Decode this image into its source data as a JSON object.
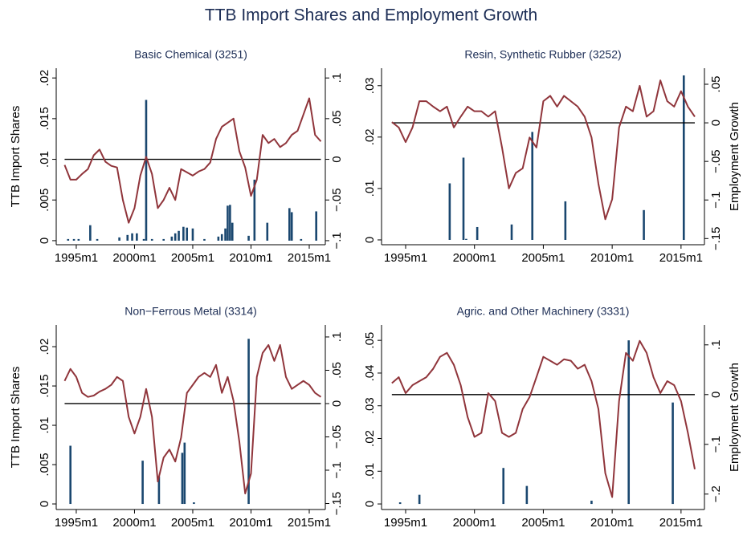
{
  "title": "TTB Import Shares and Employment Growth",
  "chart_data": [
    {
      "type": "bar-line",
      "subtitle": "Basic Chemical (3251)",
      "ylabel": "TTB Import Shares",
      "xlim": [
        1993.28,
        2016.38
      ],
      "ylim": [
        -0.0005,
        0.0212
      ],
      "y2lim": [
        -0.105,
        0.112
      ],
      "xticks": [
        {
          "value": 1995,
          "label": "1995m1"
        },
        {
          "value": 2000,
          "label": "2000m1"
        },
        {
          "value": 2005,
          "label": "2005m1"
        },
        {
          "value": 2010,
          "label": "2010m1"
        },
        {
          "value": 2015,
          "label": "2015m1"
        }
      ],
      "yticks": [
        0,
        {
          "value": 0.005,
          "label": ".005"
        },
        {
          "value": 0.01,
          "label": ".01"
        },
        {
          "value": 0.015,
          "label": ".015"
        },
        {
          "value": 0.02,
          "label": ".02"
        }
      ],
      "y2ticks": [
        {
          "value": -0.1,
          "label": "−.1"
        },
        {
          "value": -0.05,
          "label": "−.05"
        },
        0,
        {
          "value": 0.05,
          "label": ".05"
        },
        {
          "value": 0.1,
          "label": ".1"
        }
      ],
      "y2_refline": 0,
      "series": [
        {
          "type": "bar",
          "color": "#1a476f",
          "x": [
            1994.3,
            1994.8,
            1995.2,
            1996.2,
            1996.8,
            1998.7,
            1999.4,
            1999.8,
            2000.2,
            2000.8,
            2001,
            2001.5,
            2002.5,
            2003.2,
            2003.5,
            2003.8,
            2004.2,
            2004.5,
            2005,
            2006,
            2007.2,
            2007.5,
            2007.8,
            2008,
            2008.2,
            2008.4,
            2009.8,
            2010.3,
            2011.4,
            2013.3,
            2013.5,
            2014.3,
            2015.6
          ],
          "values": [
            0.0002,
            0.0002,
            0.0002,
            0.0019,
            0.0002,
            0.0004,
            0.0007,
            0.0009,
            0.0009,
            0.0002,
            0.0173,
            0.0002,
            0.0002,
            0.0005,
            0.0009,
            0.0012,
            0.0017,
            0.0016,
            0.0015,
            0.0002,
            0.0005,
            0.0008,
            0.0015,
            0.0043,
            0.0044,
            0.0022,
            0.0006,
            0.0075,
            0.0022,
            0.004,
            0.0035,
            0.0002,
            0.0036
          ]
        },
        {
          "type": "line",
          "axis": "y2",
          "color": "#90353b",
          "x": [
            1994,
            1994.5,
            1995,
            1995.5,
            1996,
            1996.5,
            1997,
            1997.5,
            1998,
            1998.5,
            1999,
            1999.5,
            2000,
            2000.5,
            2001,
            2001.5,
            2002,
            2002.5,
            2003,
            2003.5,
            2004,
            2004.5,
            2005,
            2005.5,
            2006,
            2006.5,
            2007,
            2007.5,
            2008,
            2008.5,
            2009,
            2009.5,
            2010,
            2010.5,
            2011,
            2011.5,
            2012,
            2012.5,
            2013,
            2013.5,
            2014,
            2014.5,
            2015,
            2015.5,
            2016
          ],
          "values": [
            -0.007,
            -0.025,
            -0.025,
            -0.018,
            -0.012,
            0.005,
            0.012,
            -0.003,
            -0.008,
            -0.01,
            -0.05,
            -0.078,
            -0.06,
            -0.02,
            0.003,
            -0.018,
            -0.06,
            -0.05,
            -0.035,
            -0.05,
            -0.012,
            -0.016,
            -0.02,
            -0.015,
            -0.012,
            -0.004,
            0.025,
            0.04,
            0.045,
            0.05,
            0.01,
            -0.01,
            -0.045,
            -0.025,
            0.03,
            0.02,
            0.025,
            0.015,
            0.02,
            0.03,
            0.035,
            0.055,
            0.075,
            0.03,
            0.022
          ]
        }
      ]
    },
    {
      "type": "bar-line",
      "subtitle": "Resin, Synthetic Rubber (3252)",
      "y2label": "Employment Growth",
      "xlim": [
        1993.25,
        2016.7
      ],
      "ylim": [
        -0.00094,
        0.0334
      ],
      "y2lim": [
        -0.158,
        0.0708
      ],
      "xticks": [
        {
          "value": 1995,
          "label": "1995m1"
        },
        {
          "value": 2000,
          "label": "2000m1"
        },
        {
          "value": 2005,
          "label": "2005m1"
        },
        {
          "value": 2010,
          "label": "2010m1"
        },
        {
          "value": 2015,
          "label": "2015m1"
        }
      ],
      "yticks": [
        0,
        {
          "value": 0.01,
          "label": ".01"
        },
        {
          "value": 0.02,
          "label": ".02"
        },
        {
          "value": 0.03,
          "label": ".03"
        }
      ],
      "y2ticks": [
        {
          "value": -0.15,
          "label": "−.15"
        },
        {
          "value": -0.1,
          "label": "−.1"
        },
        {
          "value": -0.05,
          "label": "−.05"
        },
        0,
        {
          "value": 0.05,
          "label": ".05"
        }
      ],
      "y2_refline": 0,
      "series": [
        {
          "type": "bar",
          "color": "#1a476f",
          "x": [
            1998.2,
            1999.2,
            1999.4,
            2000.2,
            2002.7,
            2004.2,
            2006.6,
            2012.3,
            2015.2
          ],
          "values": [
            0.011,
            0.016,
            0.0002,
            0.0025,
            0.003,
            0.021,
            0.0075,
            0.0058,
            0.032
          ]
        },
        {
          "type": "line",
          "axis": "y2",
          "color": "#90353b",
          "x": [
            1994,
            1994.5,
            1995,
            1995.5,
            1996,
            1996.5,
            1997,
            1997.5,
            1998,
            1998.5,
            1999,
            1999.5,
            2000,
            2000.5,
            2001,
            2001.5,
            2002,
            2002.5,
            2003,
            2003.5,
            2004,
            2004.5,
            2005,
            2005.5,
            2006,
            2006.5,
            2007,
            2007.5,
            2008,
            2008.5,
            2009,
            2009.5,
            2010,
            2010.5,
            2011,
            2011.5,
            2012,
            2012.5,
            2013,
            2013.5,
            2014,
            2014.5,
            2015,
            2015.5,
            2016
          ],
          "values": [
            0.001,
            -0.006,
            -0.025,
            -0.006,
            0.028,
            0.028,
            0.021,
            0.015,
            0.021,
            -0.006,
            0.008,
            0.021,
            0.015,
            0.015,
            0.008,
            0.015,
            -0.032,
            -0.085,
            -0.065,
            -0.059,
            -0.019,
            -0.032,
            0.028,
            0.035,
            0.021,
            0.035,
            0.028,
            0.021,
            0.008,
            -0.019,
            -0.079,
            -0.125,
            -0.099,
            -0.006,
            0.021,
            0.015,
            0.048,
            0.008,
            0.015,
            0.055,
            0.028,
            0.021,
            0.041,
            0.021,
            0.008
          ]
        }
      ]
    },
    {
      "type": "bar-line",
      "subtitle": "Non−Ferrous Metal (3314)",
      "ylabel": "TTB Import Shares",
      "xlim": [
        1993.28,
        2016.38
      ],
      "ylim": [
        -0.00071,
        0.02276
      ],
      "y2lim": [
        -0.159,
        0.118
      ],
      "xticks": [
        {
          "value": 1995,
          "label": "1995m1"
        },
        {
          "value": 2000,
          "label": "2000m1"
        },
        {
          "value": 2005,
          "label": "2005m1"
        },
        {
          "value": 2010,
          "label": "2010m1"
        },
        {
          "value": 2015,
          "label": "2015m1"
        }
      ],
      "yticks": [
        0,
        {
          "value": 0.005,
          "label": ".005"
        },
        {
          "value": 0.01,
          "label": ".01"
        },
        {
          "value": 0.015,
          "label": ".015"
        },
        {
          "value": 0.02,
          "label": ".02"
        }
      ],
      "y2ticks": [
        {
          "value": -0.15,
          "label": "−.15"
        },
        {
          "value": -0.1,
          "label": "−.1"
        },
        {
          "value": -0.05,
          "label": "−.05"
        },
        0,
        {
          "value": 0.05,
          "label": ".05"
        },
        {
          "value": 0.1,
          "label": ".1"
        }
      ],
      "y2_refline": 0,
      "series": [
        {
          "type": "bar",
          "color": "#1a476f",
          "x": [
            1994.5,
            2000.7,
            2002.1,
            2004.1,
            2004.3,
            2005.1,
            2009.8
          ],
          "values": [
            0.0074,
            0.0055,
            0.0035,
            0.0065,
            0.0078,
            0.0002,
            0.021
          ]
        },
        {
          "type": "line",
          "axis": "y2",
          "color": "#90353b",
          "x": [
            1994,
            1994.5,
            1995,
            1995.5,
            1996,
            1996.5,
            1997,
            1997.5,
            1998,
            1998.5,
            1999,
            1999.5,
            2000,
            2000.5,
            2001,
            2001.5,
            2002,
            2002.5,
            2003,
            2003.5,
            2004,
            2004.5,
            2005,
            2005.5,
            2006,
            2006.5,
            2007,
            2007.5,
            2008,
            2008.5,
            2009,
            2009.5,
            2010,
            2010.5,
            2011,
            2011.5,
            2012,
            2012.5,
            2013,
            2013.5,
            2014,
            2014.5,
            2015,
            2015.5,
            2016
          ],
          "values": [
            0.034,
            0.052,
            0.04,
            0.016,
            0.01,
            0.012,
            0.018,
            0.022,
            0.028,
            0.04,
            0.034,
            -0.02,
            -0.045,
            -0.02,
            0.022,
            -0.02,
            -0.117,
            -0.081,
            -0.069,
            -0.087,
            -0.051,
            0.016,
            0.028,
            0.04,
            0.046,
            0.04,
            0.058,
            0.016,
            0.04,
            0.004,
            -0.057,
            -0.135,
            -0.105,
            0.04,
            0.076,
            0.088,
            0.064,
            0.088,
            0.04,
            0.022,
            0.028,
            0.034,
            0.028,
            0.016,
            0.01
          ]
        }
      ]
    },
    {
      "type": "bar-line",
      "subtitle": "Agric. and Other Machinery  (3331)",
      "y2label": "Employment Growth",
      "xlim": [
        1993.25,
        2016.7
      ],
      "ylim": [
        -0.0017,
        0.0547
      ],
      "y2lim": [
        -0.231,
        0.14
      ],
      "xticks": [
        {
          "value": 1995,
          "label": "1995m1"
        },
        {
          "value": 2000,
          "label": "2000m1"
        },
        {
          "value": 2005,
          "label": "2005m1"
        },
        {
          "value": 2010,
          "label": "2010m1"
        },
        {
          "value": 2015,
          "label": "2015m1"
        }
      ],
      "yticks": [
        0,
        {
          "value": 0.01,
          "label": ".01"
        },
        {
          "value": 0.02,
          "label": ".02"
        },
        {
          "value": 0.03,
          "label": ".03"
        },
        {
          "value": 0.04,
          "label": ".04"
        },
        {
          "value": 0.05,
          "label": ".05"
        }
      ],
      "y2ticks": [
        {
          "value": -0.2,
          "label": "−.2"
        },
        {
          "value": -0.1,
          "label": "−.1"
        },
        0,
        {
          "value": 0.1,
          "label": ".1"
        }
      ],
      "y2_refline": 0,
      "series": [
        {
          "type": "bar",
          "color": "#1a476f",
          "x": [
            1994.6,
            1996,
            2002.1,
            2003.8,
            2008.5,
            2011.2,
            2014.4
          ],
          "values": [
            0.0005,
            0.0028,
            0.011,
            0.0055,
            0.001,
            0.05,
            0.031
          ]
        },
        {
          "type": "line",
          "axis": "y2",
          "color": "#90353b",
          "x": [
            1994,
            1994.5,
            1995,
            1995.5,
            1996,
            1996.5,
            1997,
            1997.5,
            1998,
            1998.5,
            1999,
            1999.5,
            2000,
            2000.5,
            2001,
            2001.5,
            2002,
            2002.5,
            2003,
            2003.5,
            2004,
            2004.5,
            2005,
            2005.5,
            2006,
            2006.5,
            2007,
            2007.5,
            2008,
            2008.5,
            2009,
            2009.5,
            2010,
            2010.5,
            2011,
            2011.5,
            2012,
            2012.5,
            2013,
            2013.5,
            2014,
            2014.5,
            2015,
            2015.5,
            2016
          ],
          "values": [
            0.023,
            0.035,
            0.003,
            0.019,
            0.027,
            0.035,
            0.052,
            0.076,
            0.084,
            0.06,
            0.019,
            -0.045,
            -0.085,
            -0.077,
            0.003,
            -0.013,
            -0.077,
            -0.085,
            -0.077,
            -0.029,
            -0.005,
            0.035,
            0.076,
            0.068,
            0.06,
            0.071,
            0.068,
            0.052,
            0.06,
            0.027,
            -0.029,
            -0.158,
            -0.206,
            -0.013,
            0.084,
            0.068,
            0.108,
            0.084,
            0.035,
            0.003,
            0.027,
            0.019,
            -0.013,
            -0.077,
            -0.15
          ]
        }
      ]
    }
  ]
}
